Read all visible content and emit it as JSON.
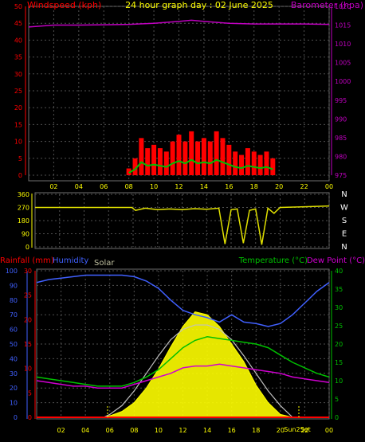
{
  "header": {
    "left_label": "Windspeed (kph)",
    "title": "24 hour graph day : 02 June 2025",
    "right_label": "Barometer (hpa)"
  },
  "colors": {
    "wind": "#ff0000",
    "gust_fill": "#00c000",
    "barometer": "#c000c0",
    "direction": "#e0e000",
    "temperature": "#00c000",
    "dewpoint": "#d000d0",
    "humidity": "#4060ff",
    "solar": "#ffff00",
    "solar_theoretical": "#c0c0c0",
    "axis_yellow": "#ffff00",
    "grid": "#505050"
  },
  "time_ticks": [
    "02",
    "04",
    "06",
    "08",
    "10",
    "12",
    "14",
    "16",
    "18",
    "20",
    "22",
    "00"
  ],
  "panel1": {
    "left_ticks": [
      "50",
      "45",
      "40",
      "35",
      "30",
      "25",
      "20",
      "15",
      "10",
      "5",
      "0"
    ],
    "right_ticks": [
      "1020",
      "1015",
      "1010",
      "1005",
      "1000",
      "995",
      "990",
      "985",
      "980",
      "975"
    ],
    "left_range": [
      0,
      50
    ],
    "right_range": [
      975,
      1020
    ]
  },
  "panel2": {
    "left_ticks": [
      "360",
      "270",
      "180",
      "90",
      "0"
    ],
    "right_ticks": [
      "N",
      "W",
      "S",
      "E",
      "N"
    ],
    "range": [
      0,
      360
    ]
  },
  "panel3": {
    "label_rain": "Rainfall (mm)",
    "label_humidity": "Humidity",
    "label_solar": "Solar",
    "label_temp": "Temperature (°C)",
    "label_dew": "Dew Point (°C)",
    "humidity_ticks": [
      "100",
      "90",
      "80",
      "70",
      "60",
      "50",
      "40",
      "30",
      "20",
      "10",
      "0"
    ],
    "rain_ticks": [
      "30",
      "25",
      "20",
      "15",
      "10",
      "5",
      "0"
    ],
    "temp_ticks": [
      "40",
      "35",
      "30",
      "25",
      "20",
      "15",
      "10",
      "5",
      "0"
    ],
    "sun_label": "Sun2Set",
    "humidity_range": [
      0,
      100
    ],
    "rain_range": [
      0,
      30
    ],
    "temp_range": [
      0,
      40
    ]
  },
  "chart_data": [
    {
      "type": "line",
      "title": "24 hour graph day : 02 June 2025",
      "ylabel": "Windspeed (kph)",
      "y2label": "Barometer (hpa)",
      "xlabel": "",
      "x_ticks": [
        "02",
        "04",
        "06",
        "08",
        "10",
        "12",
        "14",
        "16",
        "18",
        "20",
        "22",
        "00"
      ],
      "ylim": [
        0,
        50
      ],
      "y2lim": [
        975,
        1020
      ],
      "series": [
        {
          "name": "Windspeed (kph)",
          "axis": "left",
          "x": [
            8.0,
            8.5,
            9.0,
            9.5,
            10.0,
            10.5,
            11.0,
            11.5,
            12.0,
            12.5,
            13.0,
            13.5,
            14.0,
            14.5,
            15.0,
            15.5,
            16.0,
            16.5,
            17.0,
            17.5,
            18.0,
            18.5,
            19.0,
            19.5
          ],
          "y": [
            2,
            5,
            11,
            8,
            9,
            8,
            7,
            10,
            12,
            10,
            13,
            10,
            11,
            10,
            13,
            11,
            9,
            7,
            6,
            8,
            7,
            6,
            7,
            5
          ]
        },
        {
          "name": "Barometer (hpa)",
          "axis": "right",
          "x": [
            0,
            2,
            4,
            6,
            8,
            10,
            12,
            13,
            14,
            16,
            18,
            20,
            22,
            24
          ],
          "y": [
            1014.5,
            1015.0,
            1015.0,
            1015.1,
            1015.2,
            1015.5,
            1016.0,
            1016.3,
            1016.0,
            1015.5,
            1015.3,
            1015.3,
            1015.3,
            1015.2
          ]
        }
      ]
    },
    {
      "type": "line",
      "ylabel": "",
      "ylim": [
        0,
        360
      ],
      "x_ticks": [
        "02",
        "04",
        "06",
        "08",
        "10",
        "12",
        "14",
        "16",
        "18",
        "20",
        "22",
        "00"
      ],
      "y_ticks": [
        "360",
        "270",
        "180",
        "90",
        "0"
      ],
      "y2_ticks": [
        "N",
        "W",
        "S",
        "E",
        "N"
      ],
      "series": [
        {
          "name": "Wind direction",
          "x": [
            0,
            2,
            4,
            6,
            7.9,
            8.2,
            9,
            10,
            11,
            12,
            13,
            14,
            15,
            15.5,
            16,
            16.5,
            17,
            17.5,
            18,
            18.5,
            19,
            19.5,
            20,
            22,
            24
          ],
          "y": [
            270,
            270,
            270,
            270,
            270,
            250,
            265,
            255,
            260,
            255,
            262,
            258,
            265,
            20,
            255,
            260,
            25,
            250,
            260,
            15,
            265,
            230,
            270,
            275,
            280
          ]
        }
      ]
    },
    {
      "type": "line",
      "ylabel": "Humidity",
      "ylim": [
        0,
        100
      ],
      "y2lim": [
        0,
        40
      ],
      "x_ticks": [
        "02",
        "04",
        "06",
        "08",
        "10",
        "12",
        "14",
        "16",
        "18",
        "20",
        "22",
        "00"
      ],
      "series": [
        {
          "name": "Humidity",
          "axis": "humidity",
          "x": [
            0,
            1,
            2,
            3,
            4,
            5,
            6,
            7,
            8,
            9,
            10,
            11,
            12,
            13,
            14,
            15,
            16,
            17,
            18,
            19,
            20,
            21,
            22,
            23,
            24
          ],
          "y": [
            92,
            94,
            95,
            96,
            97,
            97,
            97,
            97,
            96,
            93,
            88,
            80,
            73,
            70,
            68,
            65,
            70,
            65,
            64,
            62,
            64,
            70,
            78,
            86,
            92
          ]
        },
        {
          "name": "Temperature (°C)",
          "axis": "temp",
          "x": [
            0,
            1,
            2,
            3,
            4,
            5,
            6,
            7,
            8,
            9,
            10,
            11,
            12,
            13,
            14,
            15,
            16,
            17,
            18,
            19,
            20,
            21,
            22,
            23,
            24
          ],
          "y": [
            11,
            10.5,
            10,
            9.5,
            9,
            8.5,
            8.5,
            8.5,
            9.5,
            11,
            13,
            16,
            19,
            21,
            22,
            21.5,
            21,
            20.5,
            20,
            19,
            17,
            15,
            13.5,
            12,
            11
          ]
        },
        {
          "name": "Dew Point (°C)",
          "axis": "temp",
          "x": [
            0,
            1,
            2,
            3,
            4,
            5,
            6,
            7,
            8,
            9,
            10,
            11,
            12,
            13,
            14,
            15,
            16,
            17,
            18,
            19,
            20,
            21,
            22,
            23,
            24
          ],
          "y": [
            10,
            9.5,
            9,
            8.5,
            8.5,
            8,
            8,
            8,
            9,
            10,
            11,
            12,
            13.5,
            14,
            14,
            14.5,
            14,
            13.5,
            13,
            12.5,
            12,
            11,
            10.5,
            10,
            9.5
          ]
        },
        {
          "name": "Solar",
          "axis": "humidity",
          "x": [
            5.5,
            6,
            7,
            8,
            9,
            10,
            11,
            12,
            13,
            14,
            15,
            16,
            17,
            18,
            19,
            20,
            21
          ],
          "y": [
            0,
            1,
            4,
            10,
            20,
            33,
            48,
            62,
            72,
            70,
            62,
            50,
            38,
            22,
            10,
            2,
            0
          ]
        },
        {
          "name": "Solar (theoretical)",
          "axis": "humidity",
          "x": [
            5.5,
            6,
            7,
            8,
            9,
            10,
            11,
            12,
            13,
            14,
            15,
            16,
            17,
            18,
            19,
            20,
            21
          ],
          "y": [
            0,
            2,
            8,
            18,
            30,
            42,
            53,
            60,
            63,
            63,
            60,
            53,
            42,
            30,
            18,
            8,
            0
          ]
        },
        {
          "name": "Rainfall (mm)",
          "axis": "rain",
          "x": [
            0,
            24
          ],
          "y": [
            0,
            0
          ]
        }
      ]
    }
  ]
}
